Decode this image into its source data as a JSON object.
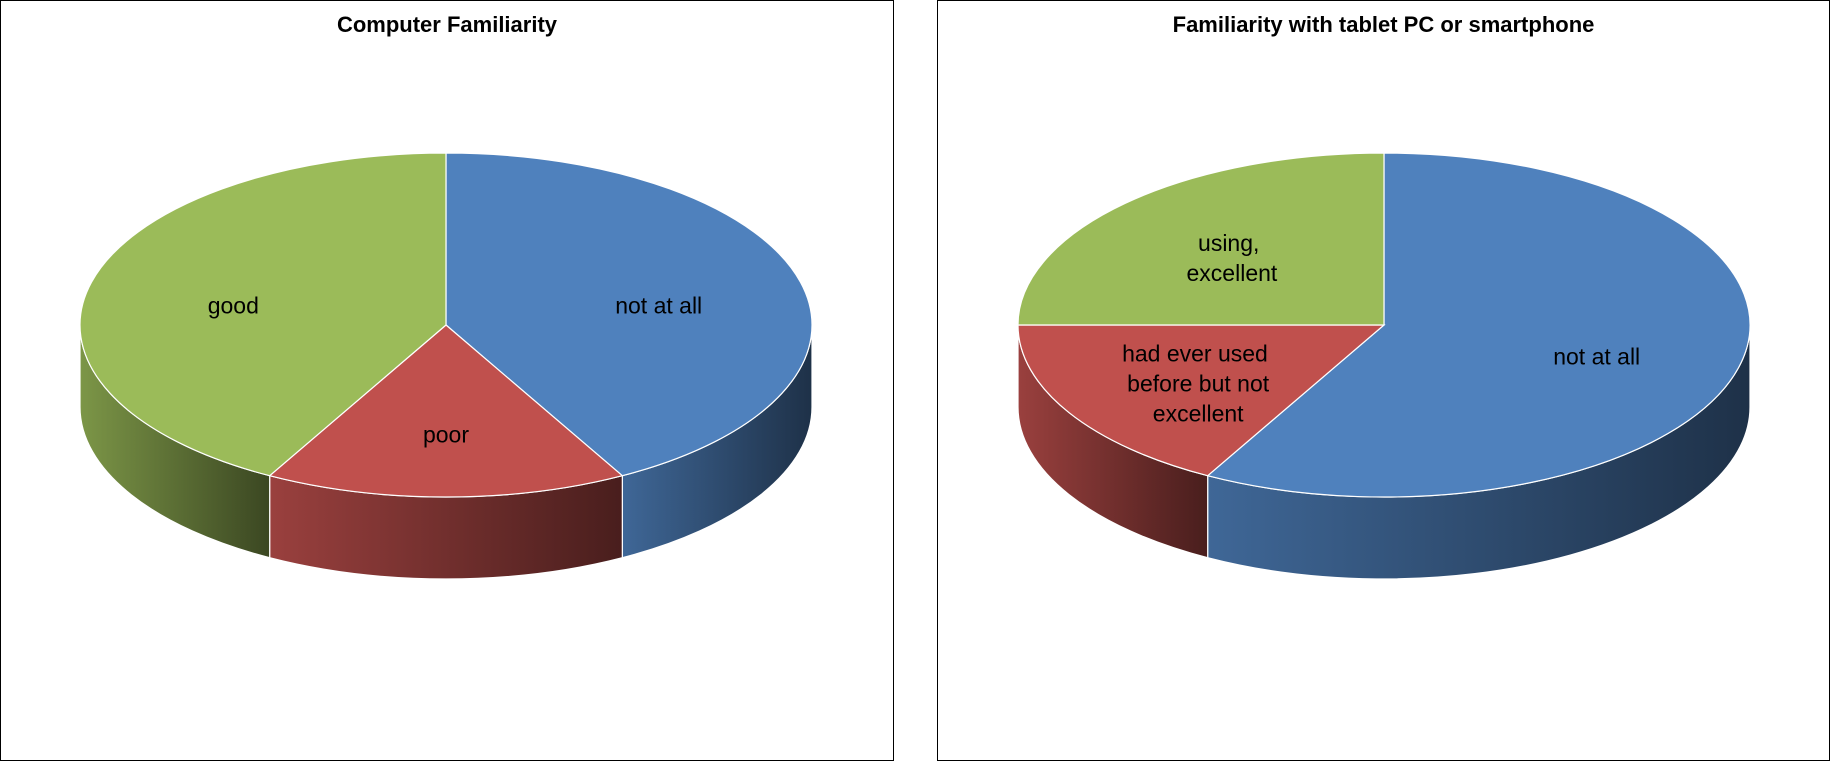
{
  "chart_data": [
    {
      "type": "pie",
      "title": "Computer Familiarity",
      "categories": [
        "not at all",
        "poor",
        "good"
      ],
      "values": [
        42,
        16,
        42
      ],
      "colors": [
        "#4f81bd",
        "#c0504d",
        "#9bbb59"
      ]
    },
    {
      "type": "pie",
      "title": "Familiarity with tablet PC or smartphone",
      "categories": [
        "not at all",
        "had ever used before but not excellent",
        "using, excellent"
      ],
      "values": [
        58,
        17,
        25
      ],
      "colors": [
        "#4f81bd",
        "#c0504d",
        "#9bbb59"
      ]
    }
  ]
}
